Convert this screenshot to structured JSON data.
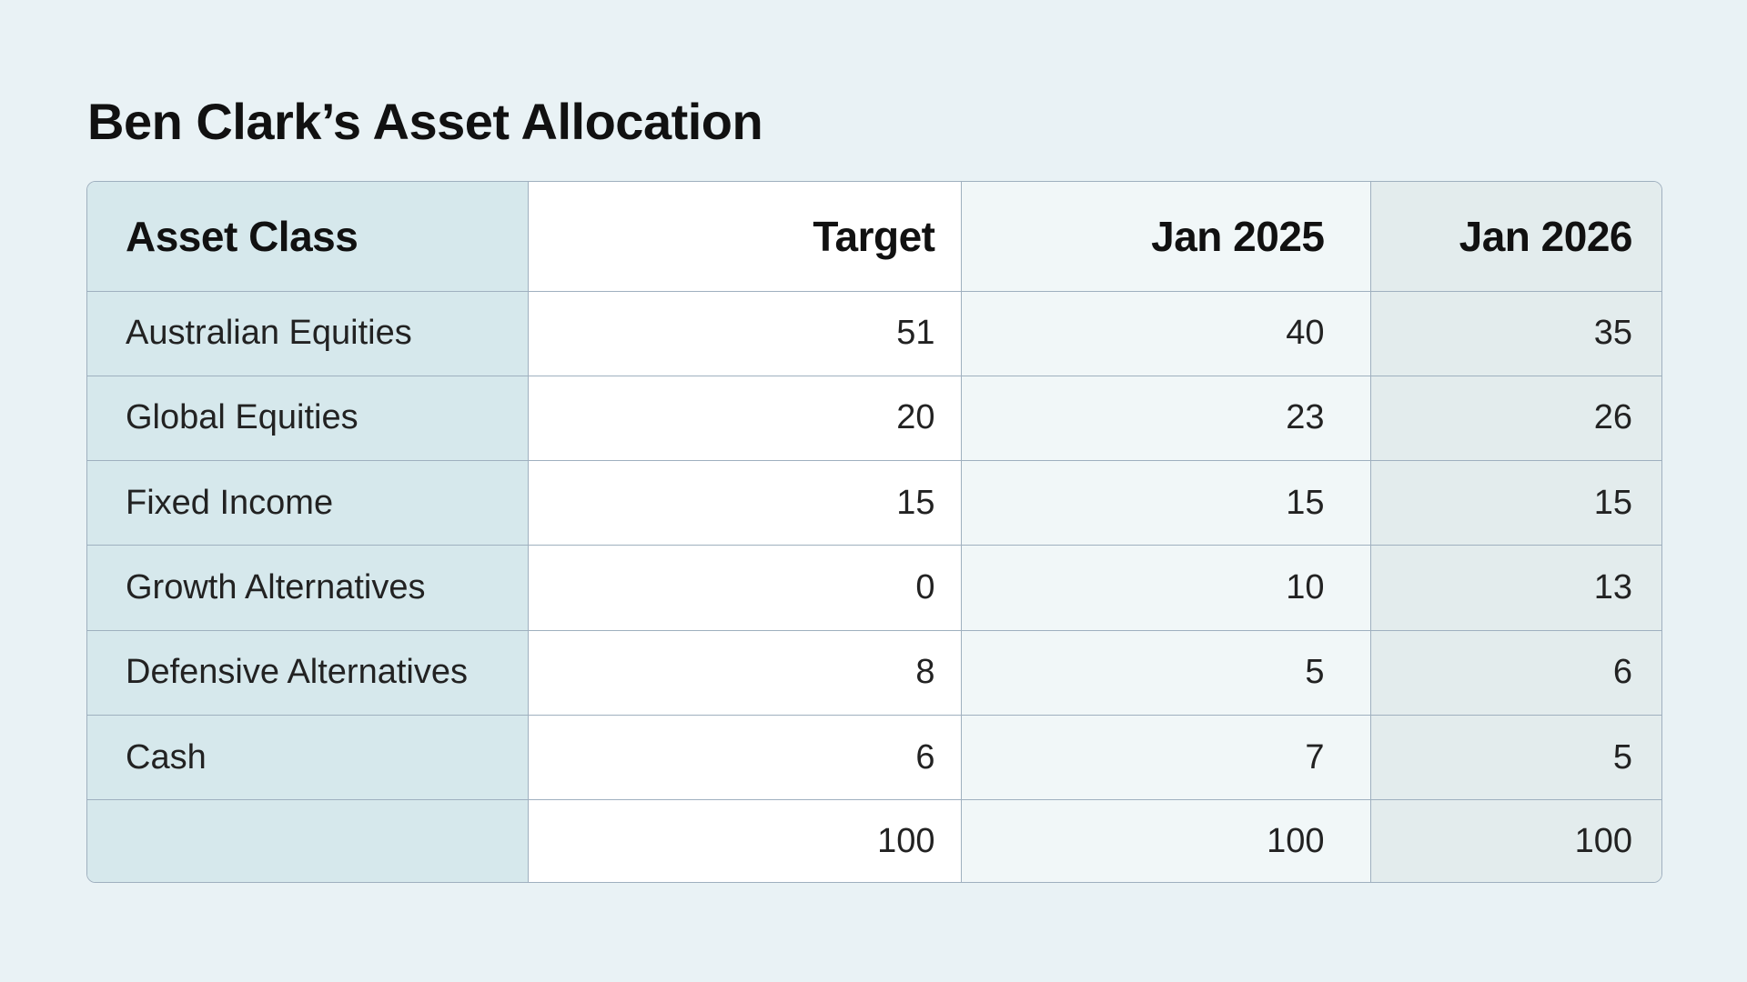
{
  "title": "Ben Clark’s Asset Allocation",
  "table": {
    "headers": [
      "Asset Class",
      "Target",
      "Jan 2025",
      "Jan 2026"
    ],
    "rows": [
      [
        "Australian Equities",
        "51",
        "40",
        "35"
      ],
      [
        "Global Equities",
        "20",
        "23",
        "26"
      ],
      [
        "Fixed Income",
        "15",
        "15",
        "15"
      ],
      [
        "Growth Alternatives",
        "0",
        "10",
        "13"
      ],
      [
        "Defensive Alternatives",
        "8",
        "5",
        "6"
      ],
      [
        "Cash",
        "6",
        "7",
        "5"
      ],
      [
        "",
        "100",
        "100",
        "100"
      ]
    ]
  },
  "colors": {
    "background": "#e9f2f5",
    "first_column": "#d6e8ec",
    "target_column": "#ffffff",
    "jan2025_column": "#f1f7f8",
    "jan2026_column": "#e3eced",
    "border": "#9fb0bf"
  }
}
